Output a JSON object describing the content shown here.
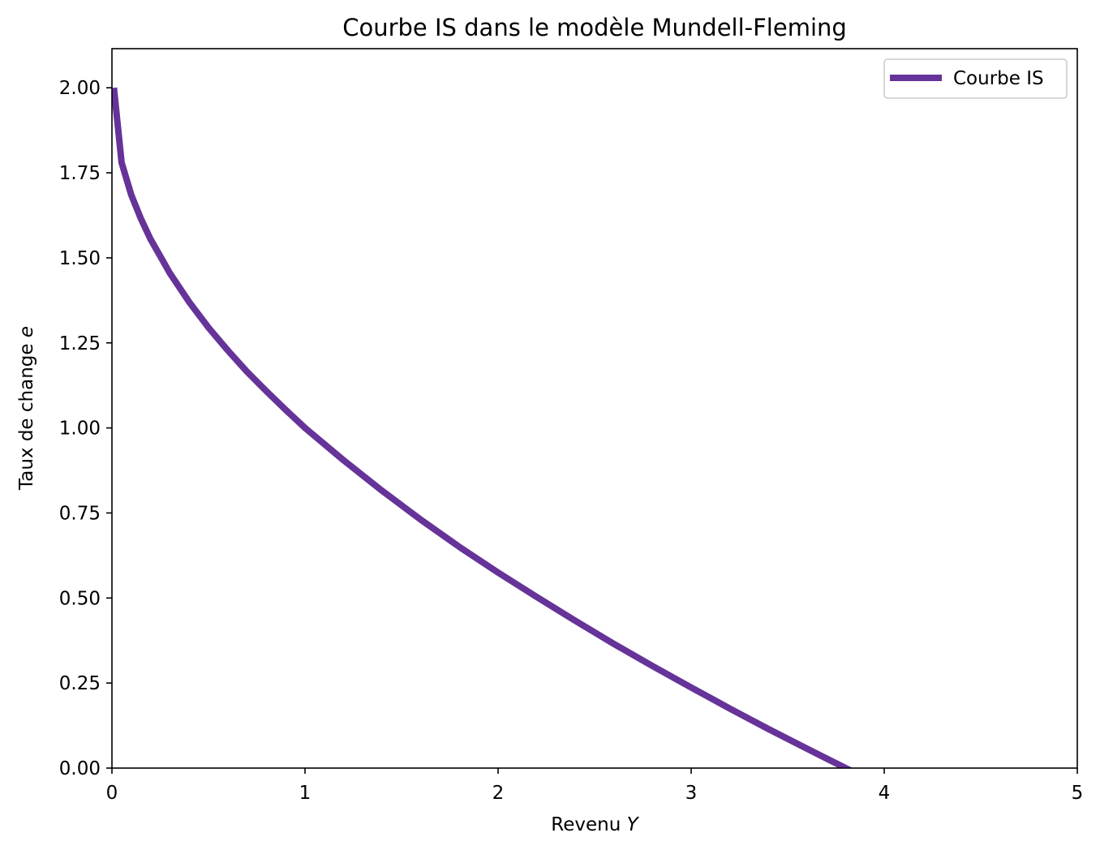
{
  "chart_data": {
    "type": "line",
    "title": "Courbe IS dans le modèle Mundell-Fleming",
    "xlabel_text": "Revenu ",
    "xlabel_var": "Y",
    "ylabel_text": "Taux de change ",
    "ylabel_var": "e",
    "xlim": [
      0,
      5
    ],
    "ylim": [
      0,
      2.115
    ],
    "x_ticks": [
      "0",
      "1",
      "2",
      "3",
      "4",
      "5"
    ],
    "x_tick_values": [
      0,
      1,
      2,
      3,
      4,
      5
    ],
    "y_ticks": [
      "0.00",
      "0.25",
      "0.50",
      "0.75",
      "1.00",
      "1.25",
      "1.50",
      "1.75",
      "2.00"
    ],
    "y_tick_values": [
      0,
      0.25,
      0.5,
      0.75,
      1.0,
      1.25,
      1.5,
      1.75,
      2.0
    ],
    "grid": false,
    "legend_position": "top-right",
    "series": [
      {
        "name": "Courbe IS",
        "color": "#663399",
        "x": [
          0.01,
          0.05,
          0.1,
          0.15,
          0.2,
          0.3,
          0.4,
          0.5,
          0.6,
          0.7,
          0.8,
          0.9,
          1.0,
          1.2,
          1.4,
          1.6,
          1.8,
          2.0,
          2.2,
          2.4,
          2.6,
          2.8,
          3.0,
          3.2,
          3.4,
          3.6,
          3.8,
          4.0,
          4.04
        ],
        "y": [
          2.0,
          1.78,
          1.685,
          1.615,
          1.555,
          1.455,
          1.37,
          1.295,
          1.228,
          1.165,
          1.108,
          1.053,
          1.0,
          0.905,
          0.815,
          0.73,
          0.65,
          0.575,
          0.503,
          0.433,
          0.365,
          0.3,
          0.237,
          0.175,
          0.115,
          0.057,
          0.0,
          -0.055,
          -0.065
        ]
      }
    ]
  }
}
